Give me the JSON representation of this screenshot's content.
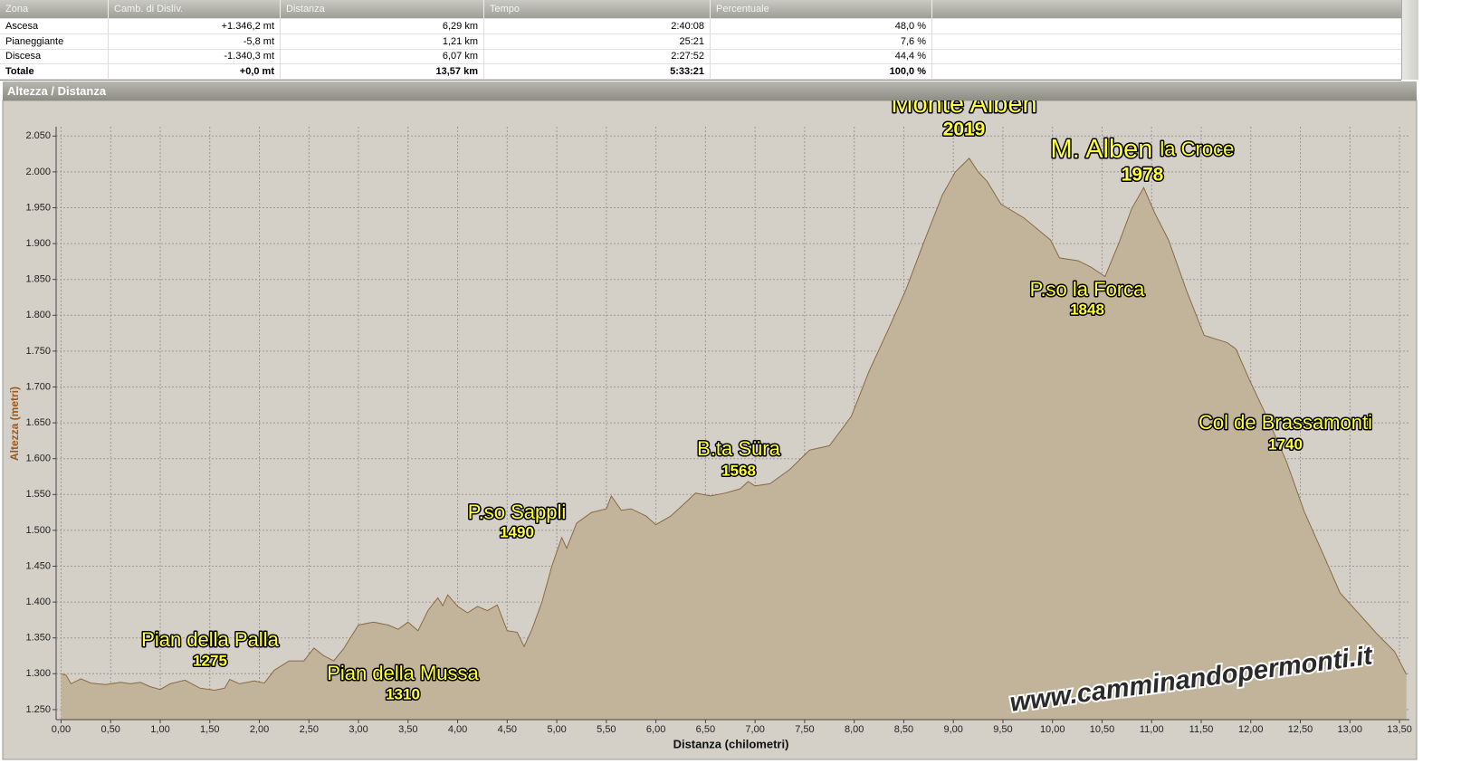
{
  "table": {
    "header": [
      "Zona",
      "Camb. di Dislív.",
      "Distanza",
      "Tempo",
      "Percentuale"
    ],
    "rows": [
      [
        "Ascesa",
        "+1.346,2 mt",
        "6,29 km",
        "2:40:08",
        "48,0 %"
      ],
      [
        "Pianeggiante",
        "-5,8 mt",
        "1,21 km",
        "25:21",
        "7,6 %"
      ],
      [
        "Discesa",
        "-1.340,3 mt",
        "6,07 km",
        "2:27:52",
        "44,4 %"
      ],
      [
        "Totale",
        "+0,0 mt",
        "13,57 km",
        "5:33:21",
        "100,0 %"
      ]
    ]
  },
  "panel_title": "Altezza / Distanza",
  "chart_data": {
    "type": "area",
    "x_label": "Distanza (chilometri)",
    "y_label": "Altezza (metri)",
    "color": "#c1b49b",
    "line_color": "#8a6a42",
    "grid": true,
    "x": [
      0,
      0.05,
      0.1,
      0.2,
      0.3,
      0.45,
      0.6,
      0.7,
      0.8,
      0.9,
      1.0,
      1.1,
      1.25,
      1.4,
      1.55,
      1.65,
      1.7,
      1.8,
      1.95,
      2.05,
      2.15,
      2.3,
      2.45,
      2.55,
      2.65,
      2.75,
      2.85,
      3.0,
      3.15,
      3.3,
      3.4,
      3.5,
      3.6,
      3.7,
      3.8,
      3.85,
      3.9,
      4.0,
      4.1,
      4.2,
      4.3,
      4.4,
      4.5,
      4.6,
      4.67,
      4.75,
      4.85,
      4.95,
      5.05,
      5.1,
      5.2,
      5.35,
      5.5,
      5.55,
      5.65,
      5.75,
      5.9,
      6.0,
      6.15,
      6.3,
      6.4,
      6.55,
      6.7,
      6.85,
      6.93,
      7.0,
      7.15,
      7.35,
      7.55,
      7.75,
      7.97,
      8.15,
      8.34,
      8.52,
      8.7,
      8.89,
      9.02,
      9.16,
      9.25,
      9.34,
      9.48,
      9.71,
      9.98,
      10.07,
      10.26,
      10.39,
      10.53,
      10.67,
      10.8,
      10.92,
      11.03,
      11.17,
      11.35,
      11.53,
      11.76,
      11.85,
      11.99,
      12.17,
      12.36,
      12.54,
      12.72,
      12.9,
      13.09,
      13.27,
      13.45,
      13.57
    ],
    "values": [
      1300,
      1298,
      1286,
      1293,
      1287,
      1285,
      1288,
      1286,
      1288,
      1282,
      1278,
      1286,
      1291,
      1280,
      1277,
      1280,
      1292,
      1286,
      1290,
      1287,
      1305,
      1318,
      1318,
      1336,
      1325,
      1318,
      1335,
      1368,
      1372,
      1368,
      1362,
      1372,
      1360,
      1388,
      1406,
      1395,
      1410,
      1394,
      1385,
      1394,
      1388,
      1396,
      1360,
      1358,
      1338,
      1362,
      1400,
      1450,
      1490,
      1475,
      1510,
      1525,
      1530,
      1548,
      1528,
      1530,
      1520,
      1508,
      1520,
      1539,
      1552,
      1548,
      1552,
      1558,
      1568,
      1562,
      1565,
      1585,
      1612,
      1618,
      1659,
      1722,
      1779,
      1835,
      1901,
      1968,
      2000,
      2019,
      2000,
      1987,
      1955,
      1936,
      1905,
      1880,
      1876,
      1867,
      1854,
      1901,
      1949,
      1978,
      1943,
      1905,
      1835,
      1772,
      1762,
      1753,
      1709,
      1656,
      1596,
      1526,
      1470,
      1413,
      1384,
      1356,
      1331,
      1299
    ],
    "xlim": [
      -0.05,
      13.6
    ],
    "ylim": [
      1236,
      2063
    ],
    "xticks": [
      {
        "value": 0,
        "label": "0,00"
      },
      {
        "value": 0.5,
        "label": "0,50"
      },
      {
        "value": 1,
        "label": "1,00"
      },
      {
        "value": 1.5,
        "label": "1,50"
      },
      {
        "value": 2,
        "label": "2,00"
      },
      {
        "value": 2.5,
        "label": "2,50"
      },
      {
        "value": 3,
        "label": "3,00"
      },
      {
        "value": 3.5,
        "label": "3,50"
      },
      {
        "value": 4,
        "label": "4,00"
      },
      {
        "value": 4.5,
        "label": "4,50"
      },
      {
        "value": 5,
        "label": "5,00"
      },
      {
        "value": 5.5,
        "label": "5,50"
      },
      {
        "value": 6,
        "label": "6,00"
      },
      {
        "value": 6.5,
        "label": "6,50"
      },
      {
        "value": 7,
        "label": "7,00"
      },
      {
        "value": 7.5,
        "label": "7,50"
      },
      {
        "value": 8,
        "label": "8,00"
      },
      {
        "value": 8.5,
        "label": "8,50"
      },
      {
        "value": 9,
        "label": "9,00"
      },
      {
        "value": 9.5,
        "label": "9,50"
      },
      {
        "value": 10,
        "label": "10,00"
      },
      {
        "value": 10.5,
        "label": "10,50"
      },
      {
        "value": 11,
        "label": "11,00"
      },
      {
        "value": 11.5,
        "label": "11,50"
      },
      {
        "value": 12,
        "label": "12,00"
      },
      {
        "value": 12.5,
        "label": "12,50"
      },
      {
        "value": 13,
        "label": "13,00"
      },
      {
        "value": 13.5,
        "label": "13,50"
      }
    ],
    "yticks": [
      {
        "value": 1250,
        "label": "1.250"
      },
      {
        "value": 1300,
        "label": "1.300"
      },
      {
        "value": 1350,
        "label": "1.350"
      },
      {
        "value": 1400,
        "label": "1.400"
      },
      {
        "value": 1450,
        "label": "1.450"
      },
      {
        "value": 1500,
        "label": "1.500"
      },
      {
        "value": 1550,
        "label": "1.550"
      },
      {
        "value": 1600,
        "label": "1.600"
      },
      {
        "value": 1650,
        "label": "1.650"
      },
      {
        "value": 1700,
        "label": "1.700"
      },
      {
        "value": 1750,
        "label": "1.750"
      },
      {
        "value": 1800,
        "label": "1.800"
      },
      {
        "value": 1850,
        "label": "1.850"
      },
      {
        "value": 1900,
        "label": "1.900"
      },
      {
        "value": 1950,
        "label": "1.950"
      },
      {
        "value": 2000,
        "label": "2.000"
      },
      {
        "value": 2050,
        "label": "2.050"
      }
    ],
    "annotations": [
      {
        "name": "Monte Alben",
        "elevation": 2019
      },
      {
        "name": "M. Alben",
        "suffix": "la Croce",
        "elevation": 1978
      },
      {
        "name": "P.so la Forca",
        "elevation": 1848
      },
      {
        "name": "Col de Brassamonti",
        "elevation": 1740
      },
      {
        "name": "B.ta Süra",
        "elevation": 1568
      },
      {
        "name": "P.so Sappli",
        "elevation": 1490
      },
      {
        "name": "Pian della Palla",
        "elevation": 1275
      },
      {
        "name": "Pian della Mussa",
        "elevation": 1310
      }
    ],
    "watermark": "www.camminandopermonti.it"
  }
}
